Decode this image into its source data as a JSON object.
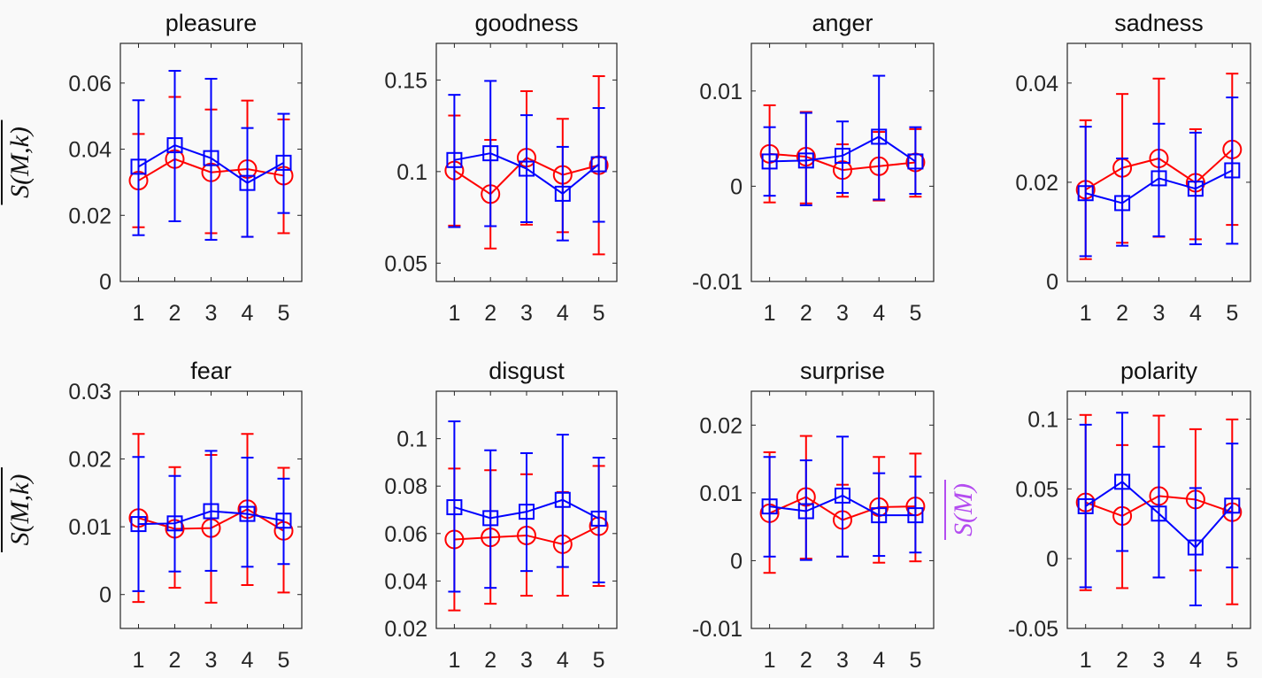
{
  "figure": {
    "series_colors": {
      "red": "#ff0000",
      "blue": "#0000ff"
    },
    "highlight_color": "#b44cf0",
    "ylabel_row": "S(M,k)",
    "ylabel_polarity": "S(M)"
  },
  "chart_data": [
    {
      "type": "line",
      "title": "pleasure",
      "x": [
        1,
        2,
        3,
        4,
        5
      ],
      "xticks": [
        "1",
        "2",
        "3",
        "4",
        "5"
      ],
      "ylim": [
        0,
        0.072
      ],
      "yticks": [
        0,
        0.02,
        0.04,
        0.06
      ],
      "ytick_labels": [
        "0",
        "0.02",
        "0.04",
        "0.06"
      ],
      "ylabel": "S(M,k)",
      "highlight": false,
      "series": [
        {
          "name": "red-circle",
          "color": "#ff0000",
          "marker": "circle",
          "values": [
            0.0305,
            0.037,
            0.033,
            0.034,
            0.032
          ],
          "upper": [
            0.0446,
            0.0558,
            0.052,
            0.0547,
            0.049
          ],
          "lower": [
            0.0164,
            0.0182,
            0.0146,
            0.0135,
            0.0146
          ]
        },
        {
          "name": "blue-square",
          "color": "#0000ff",
          "marker": "square",
          "values": [
            0.0347,
            0.0412,
            0.0373,
            0.0298,
            0.0359
          ],
          "upper": [
            0.0548,
            0.0637,
            0.0613,
            0.0464,
            0.0507
          ],
          "lower": [
            0.014,
            0.0182,
            0.0126,
            0.0135,
            0.0207
          ]
        }
      ]
    },
    {
      "type": "line",
      "title": "goodness",
      "x": [
        1,
        2,
        3,
        4,
        5
      ],
      "xticks": [
        "1",
        "2",
        "3",
        "4",
        "5"
      ],
      "ylim": [
        0.04,
        0.17
      ],
      "yticks": [
        0.05,
        0.1,
        0.15
      ],
      "ytick_labels": [
        "0.05",
        "0.1",
        "0.15"
      ],
      "ylabel": "",
      "highlight": false,
      "series": [
        {
          "name": "red-circle",
          "color": "#ff0000",
          "marker": "circle",
          "values": [
            0.1006,
            0.0877,
            0.1076,
            0.0982,
            0.1035
          ],
          "upper": [
            0.1306,
            0.1173,
            0.1439,
            0.1288,
            0.1521
          ],
          "lower": [
            0.0705,
            0.058,
            0.071,
            0.0669,
            0.0548
          ]
        },
        {
          "name": "blue-square",
          "color": "#0000ff",
          "marker": "square",
          "values": [
            0.1063,
            0.11,
            0.1016,
            0.0879,
            0.104
          ],
          "upper": [
            0.1419,
            0.1495,
            0.1308,
            0.1135,
            0.1347
          ],
          "lower": [
            0.0697,
            0.0702,
            0.0724,
            0.0624,
            0.0726
          ]
        }
      ]
    },
    {
      "type": "line",
      "title": "anger",
      "x": [
        1,
        2,
        3,
        4,
        5
      ],
      "xticks": [
        "1",
        "2",
        "3",
        "4",
        "5"
      ],
      "ylim": [
        -0.01,
        0.015
      ],
      "yticks": [
        -0.01,
        0,
        0.01
      ],
      "ytick_labels": [
        "-0.01",
        "0",
        "0.01"
      ],
      "ylabel": "",
      "highlight": false,
      "series": [
        {
          "name": "red-circle",
          "color": "#ff0000",
          "marker": "circle",
          "values": [
            0.0034,
            0.0031,
            0.0017,
            0.0021,
            0.0025
          ],
          "upper": [
            0.0085,
            0.0078,
            0.0044,
            0.0057,
            0.006
          ],
          "lower": [
            -0.0017,
            -0.0018,
            -0.0011,
            -0.0015,
            -0.0011
          ]
        },
        {
          "name": "blue-square",
          "color": "#0000ff",
          "marker": "square",
          "values": [
            0.0026,
            0.0027,
            0.0032,
            0.0052,
            0.0026
          ],
          "upper": [
            0.0062,
            0.0077,
            0.0068,
            0.0116,
            0.0062
          ],
          "lower": [
            -0.001,
            -0.002,
            -0.0007,
            -0.0014,
            -0.0008
          ]
        }
      ]
    },
    {
      "type": "line",
      "title": "sadness",
      "x": [
        1,
        2,
        3,
        4,
        5
      ],
      "xticks": [
        "1",
        "2",
        "3",
        "4",
        "5"
      ],
      "ylim": [
        0,
        0.048
      ],
      "yticks": [
        0,
        0.02,
        0.04
      ],
      "ytick_labels": [
        "0",
        "0.02",
        "0.04"
      ],
      "ylabel": "",
      "highlight": false,
      "series": [
        {
          "name": "red-circle",
          "color": "#ff0000",
          "marker": "circle",
          "values": [
            0.0185,
            0.0229,
            0.0248,
            0.0199,
            0.0266
          ],
          "upper": [
            0.0325,
            0.0378,
            0.0409,
            0.0307,
            0.0419
          ],
          "lower": [
            0.0045,
            0.0078,
            0.009,
            0.0085,
            0.0114
          ]
        },
        {
          "name": "blue-square",
          "color": "#0000ff",
          "marker": "square",
          "values": [
            0.0178,
            0.0158,
            0.0208,
            0.0187,
            0.0224
          ],
          "upper": [
            0.0312,
            0.0248,
            0.0318,
            0.03,
            0.0371
          ],
          "lower": [
            0.0051,
            0.0072,
            0.0091,
            0.0075,
            0.0076
          ]
        }
      ]
    },
    {
      "type": "line",
      "title": "fear",
      "x": [
        1,
        2,
        3,
        4,
        5
      ],
      "xticks": [
        "1",
        "2",
        "3",
        "4",
        "5"
      ],
      "ylim": [
        -0.005,
        0.03
      ],
      "yticks": [
        0,
        0.01,
        0.02,
        0.03
      ],
      "ytick_labels": [
        "0",
        "0.01",
        "0.02",
        "0.03"
      ],
      "ylabel": "S(M,k)",
      "highlight": false,
      "series": [
        {
          "name": "red-circle",
          "color": "#ff0000",
          "marker": "circle",
          "values": [
            0.0113,
            0.0097,
            0.0098,
            0.0126,
            0.0094
          ],
          "upper": [
            0.0237,
            0.0188,
            0.0206,
            0.0237,
            0.0187
          ],
          "lower": [
            -0.0011,
            0.001,
            -0.0012,
            0.0014,
            0.0003
          ]
        },
        {
          "name": "blue-square",
          "color": "#0000ff",
          "marker": "square",
          "values": [
            0.0104,
            0.0105,
            0.0123,
            0.0119,
            0.0109
          ],
          "upper": [
            0.0203,
            0.0175,
            0.0212,
            0.0202,
            0.0171
          ],
          "lower": [
            0.0005,
            0.0034,
            0.0035,
            0.0041,
            0.0045
          ]
        }
      ]
    },
    {
      "type": "line",
      "title": "disgust",
      "x": [
        1,
        2,
        3,
        4,
        5
      ],
      "xticks": [
        "1",
        "2",
        "3",
        "4",
        "5"
      ],
      "ylim": [
        0.02,
        0.12
      ],
      "yticks": [
        0.02,
        0.04,
        0.06,
        0.08,
        0.1
      ],
      "ytick_labels": [
        "0.02",
        "0.04",
        "0.06",
        "0.08",
        "0.1"
      ],
      "ylabel": "",
      "highlight": false,
      "series": [
        {
          "name": "red-circle",
          "color": "#ff0000",
          "marker": "circle",
          "values": [
            0.0575,
            0.0584,
            0.0592,
            0.0555,
            0.0631
          ],
          "upper": [
            0.0874,
            0.0867,
            0.085,
            0.0775,
            0.0885
          ],
          "lower": [
            0.0276,
            0.0304,
            0.0338,
            0.0338,
            0.0379
          ]
        },
        {
          "name": "blue-square",
          "color": "#0000ff",
          "marker": "square",
          "values": [
            0.0711,
            0.0665,
            0.0692,
            0.0742,
            0.0663
          ],
          "upper": [
            0.1073,
            0.0951,
            0.0939,
            0.1017,
            0.092
          ],
          "lower": [
            0.0355,
            0.0371,
            0.0442,
            0.0459,
            0.0394
          ]
        }
      ]
    },
    {
      "type": "line",
      "title": "surprise",
      "x": [
        1,
        2,
        3,
        4,
        5
      ],
      "xticks": [
        "1",
        "2",
        "3",
        "4",
        "5"
      ],
      "ylim": [
        -0.01,
        0.025
      ],
      "yticks": [
        -0.01,
        0,
        0.01,
        0.02
      ],
      "ytick_labels": [
        "-0.01",
        "0",
        "0.01",
        "0.02"
      ],
      "ylabel": "",
      "highlight": false,
      "series": [
        {
          "name": "red-circle",
          "color": "#ff0000",
          "marker": "circle",
          "values": [
            0.007,
            0.0094,
            0.006,
            0.0079,
            0.008
          ],
          "upper": [
            0.016,
            0.0184,
            0.0112,
            0.0153,
            0.0158
          ],
          "lower": [
            -0.0018,
            0.0003,
            0.0006,
            -0.0003,
            -0.0001
          ]
        },
        {
          "name": "blue-square",
          "color": "#0000ff",
          "marker": "square",
          "values": [
            0.008,
            0.0073,
            0.0096,
            0.0067,
            0.0067
          ],
          "upper": [
            0.0153,
            0.0148,
            0.0183,
            0.0129,
            0.0124
          ],
          "lower": [
            0.0006,
            0.0001,
            0.0006,
            0.0007,
            0.0012
          ]
        }
      ]
    },
    {
      "type": "line",
      "title": "polarity",
      "x": [
        1,
        2,
        3,
        4,
        5
      ],
      "xticks": [
        "1",
        "2",
        "3",
        "4",
        "5"
      ],
      "ylim": [
        -0.05,
        0.12
      ],
      "yticks": [
        -0.05,
        0,
        0.05,
        0.1
      ],
      "ytick_labels": [
        "-0.05",
        "0",
        "0.05",
        "0.1"
      ],
      "ylabel": "S(M)",
      "highlight": true,
      "series": [
        {
          "name": "red-circle",
          "color": "#ff0000",
          "marker": "circle",
          "values": [
            0.0403,
            0.0306,
            0.0449,
            0.0424,
            0.0333
          ],
          "upper": [
            0.103,
            0.0814,
            0.1025,
            0.0928,
            0.0998
          ],
          "lower": [
            -0.0226,
            -0.0211,
            -0.0135,
            -0.0084,
            -0.0327
          ]
        },
        {
          "name": "blue-square",
          "color": "#0000ff",
          "marker": "square",
          "values": [
            0.0376,
            0.0551,
            0.0323,
            0.008,
            0.038
          ],
          "upper": [
            0.096,
            0.1046,
            0.0802,
            0.0506,
            0.0825
          ],
          "lower": [
            -0.0205,
            0.0055,
            -0.0135,
            -0.0335,
            -0.0063
          ]
        }
      ]
    }
  ]
}
